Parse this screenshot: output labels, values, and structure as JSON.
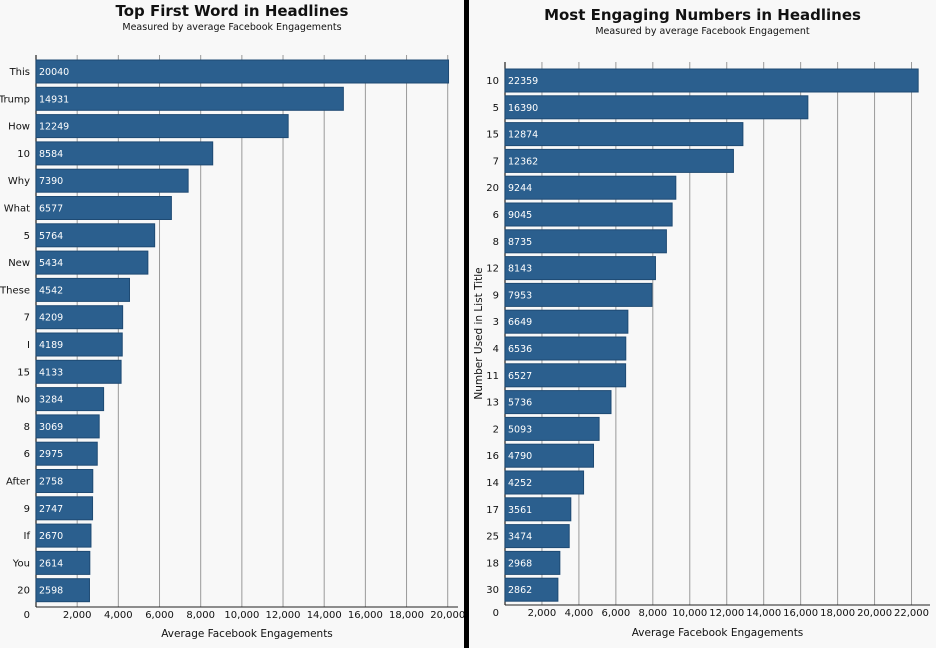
{
  "chart_data": [
    {
      "type": "bar",
      "orientation": "horizontal",
      "title": "Top First Word in Headlines",
      "subtitle": "Measured by average Facebook Engagements",
      "xlabel": "Average Facebook Engagements",
      "ylabel": "",
      "categories": [
        "This",
        "Trump",
        "How",
        "10",
        "Why",
        "What",
        "5",
        "New",
        "These",
        "7",
        "I",
        "15",
        "No",
        "8",
        "6",
        "After",
        "9",
        "If",
        "You",
        "20"
      ],
      "values": [
        20040,
        14931,
        12249,
        8584,
        7390,
        6577,
        5764,
        5434,
        4542,
        4209,
        4189,
        4133,
        3284,
        3069,
        2975,
        2758,
        2747,
        2670,
        2614,
        2598
      ],
      "xlim": [
        0,
        20500
      ],
      "xticks": [
        0,
        2000,
        4000,
        6000,
        8000,
        10000,
        12000,
        14000,
        16000,
        18000,
        20000
      ],
      "xtick_labels": [
        "0",
        "2,000",
        "4,000",
        "6,000",
        "8,000",
        "10,000",
        "12,000",
        "14,000",
        "16,000",
        "18,000",
        "20,000"
      ],
      "grid": true,
      "bar_color": "#2b5f8e"
    },
    {
      "type": "bar",
      "orientation": "horizontal",
      "title": "Most Engaging Numbers in Headlines",
      "subtitle": "Measured by average Facebook Engagement",
      "xlabel": "Average Facebook Engagements",
      "ylabel": "Number Used in List Title",
      "categories": [
        "10",
        "5",
        "15",
        "7",
        "20",
        "6",
        "8",
        "12",
        "9",
        "3",
        "4",
        "11",
        "13",
        "2",
        "16",
        "14",
        "17",
        "25",
        "18",
        "30"
      ],
      "values": [
        22359,
        16390,
        12874,
        12362,
        9244,
        9045,
        8735,
        8143,
        7953,
        6649,
        6536,
        6527,
        5736,
        5093,
        4790,
        4252,
        3561,
        3474,
        2968,
        2862
      ],
      "xlim": [
        0,
        23000
      ],
      "xticks": [
        0,
        2000,
        4000,
        6000,
        8000,
        10000,
        12000,
        14000,
        16000,
        18000,
        20000,
        22000
      ],
      "xtick_labels": [
        "0",
        "2,000",
        "4,000",
        "6,000",
        "8,000",
        "10,000",
        "12,000",
        "14,000",
        "16,000",
        "18,000",
        "20,000",
        "22,000"
      ],
      "grid": true,
      "bar_color": "#2b5f8e"
    }
  ]
}
